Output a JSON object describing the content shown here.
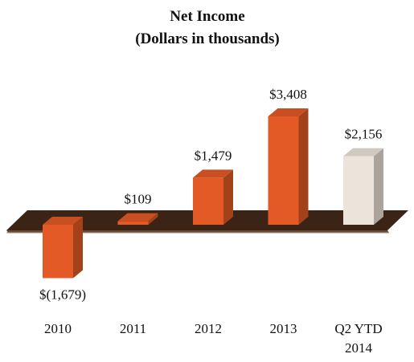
{
  "chart_data": {
    "type": "bar3d",
    "title": "Net Income",
    "subtitle": "(Dollars in thousands)",
    "categories": [
      "2010",
      "2011",
      "2012",
      "2013",
      "Q2 YTD 2014"
    ],
    "values": [
      -1679,
      109,
      1479,
      3408,
      2156
    ],
    "value_labels": [
      "$(1,679)",
      "$109",
      "$1,479",
      "$3,408",
      "$2,156"
    ],
    "colors": [
      "#e35a26",
      "#e35a26",
      "#e35a26",
      "#e35a26",
      "#ece4da"
    ]
  }
}
